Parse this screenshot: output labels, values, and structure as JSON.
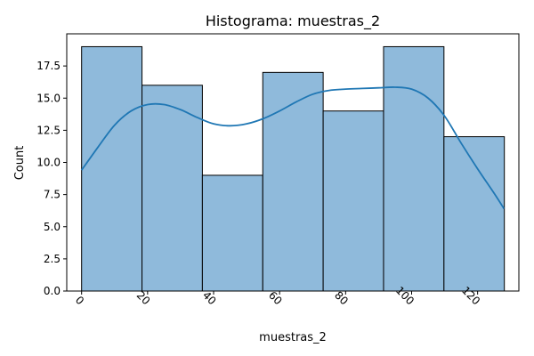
{
  "chart_data": {
    "type": "bar",
    "title": "Histograma: muestras_2",
    "xlabel": "muestras_2",
    "ylabel": "Count",
    "bins": [
      {
        "start": 0.0,
        "end": 18.3,
        "count": 19
      },
      {
        "start": 18.3,
        "end": 36.6,
        "count": 16
      },
      {
        "start": 36.6,
        "end": 54.9,
        "count": 9
      },
      {
        "start": 54.9,
        "end": 73.2,
        "count": 17
      },
      {
        "start": 73.2,
        "end": 91.5,
        "count": 14
      },
      {
        "start": 91.5,
        "end": 109.8,
        "count": 19
      },
      {
        "start": 109.8,
        "end": 128.1,
        "count": 12
      }
    ],
    "kde": {
      "name": "",
      "x": [
        0,
        5,
        10,
        15,
        20,
        25,
        30,
        35,
        40,
        45,
        50,
        55,
        60,
        65,
        70,
        75,
        80,
        85,
        90,
        95,
        100,
        105,
        110,
        115,
        120,
        125,
        128
      ],
      "y": [
        9.4,
        11.2,
        12.9,
        14.0,
        14.5,
        14.5,
        14.1,
        13.5,
        13.0,
        12.85,
        13.0,
        13.4,
        14.0,
        14.7,
        15.3,
        15.6,
        15.7,
        15.75,
        15.8,
        15.85,
        15.7,
        15.0,
        13.6,
        11.5,
        9.5,
        7.6,
        6.4
      ]
    },
    "xlim": [
      -4.5,
      132.5
    ],
    "ylim": [
      0,
      20
    ],
    "xticks": [
      0,
      20,
      40,
      60,
      80,
      100,
      120
    ],
    "xtick_labels": [
      "0",
      "20",
      "40",
      "60",
      "80",
      "100",
      "120"
    ],
    "xtick_rotation_deg": 45,
    "yticks": [
      0,
      2.5,
      5,
      7.5,
      10,
      12.5,
      15,
      17.5
    ],
    "ytick_labels": [
      "0.0",
      "2.5",
      "5.0",
      "7.5",
      "10.0",
      "12.5",
      "15.0",
      "17.5"
    ],
    "grid": false,
    "colors": {
      "bar_fill": "#8fbadb",
      "bar_edge": "#000000",
      "kde_line": "#1f77b4",
      "axis": "#000000"
    }
  }
}
